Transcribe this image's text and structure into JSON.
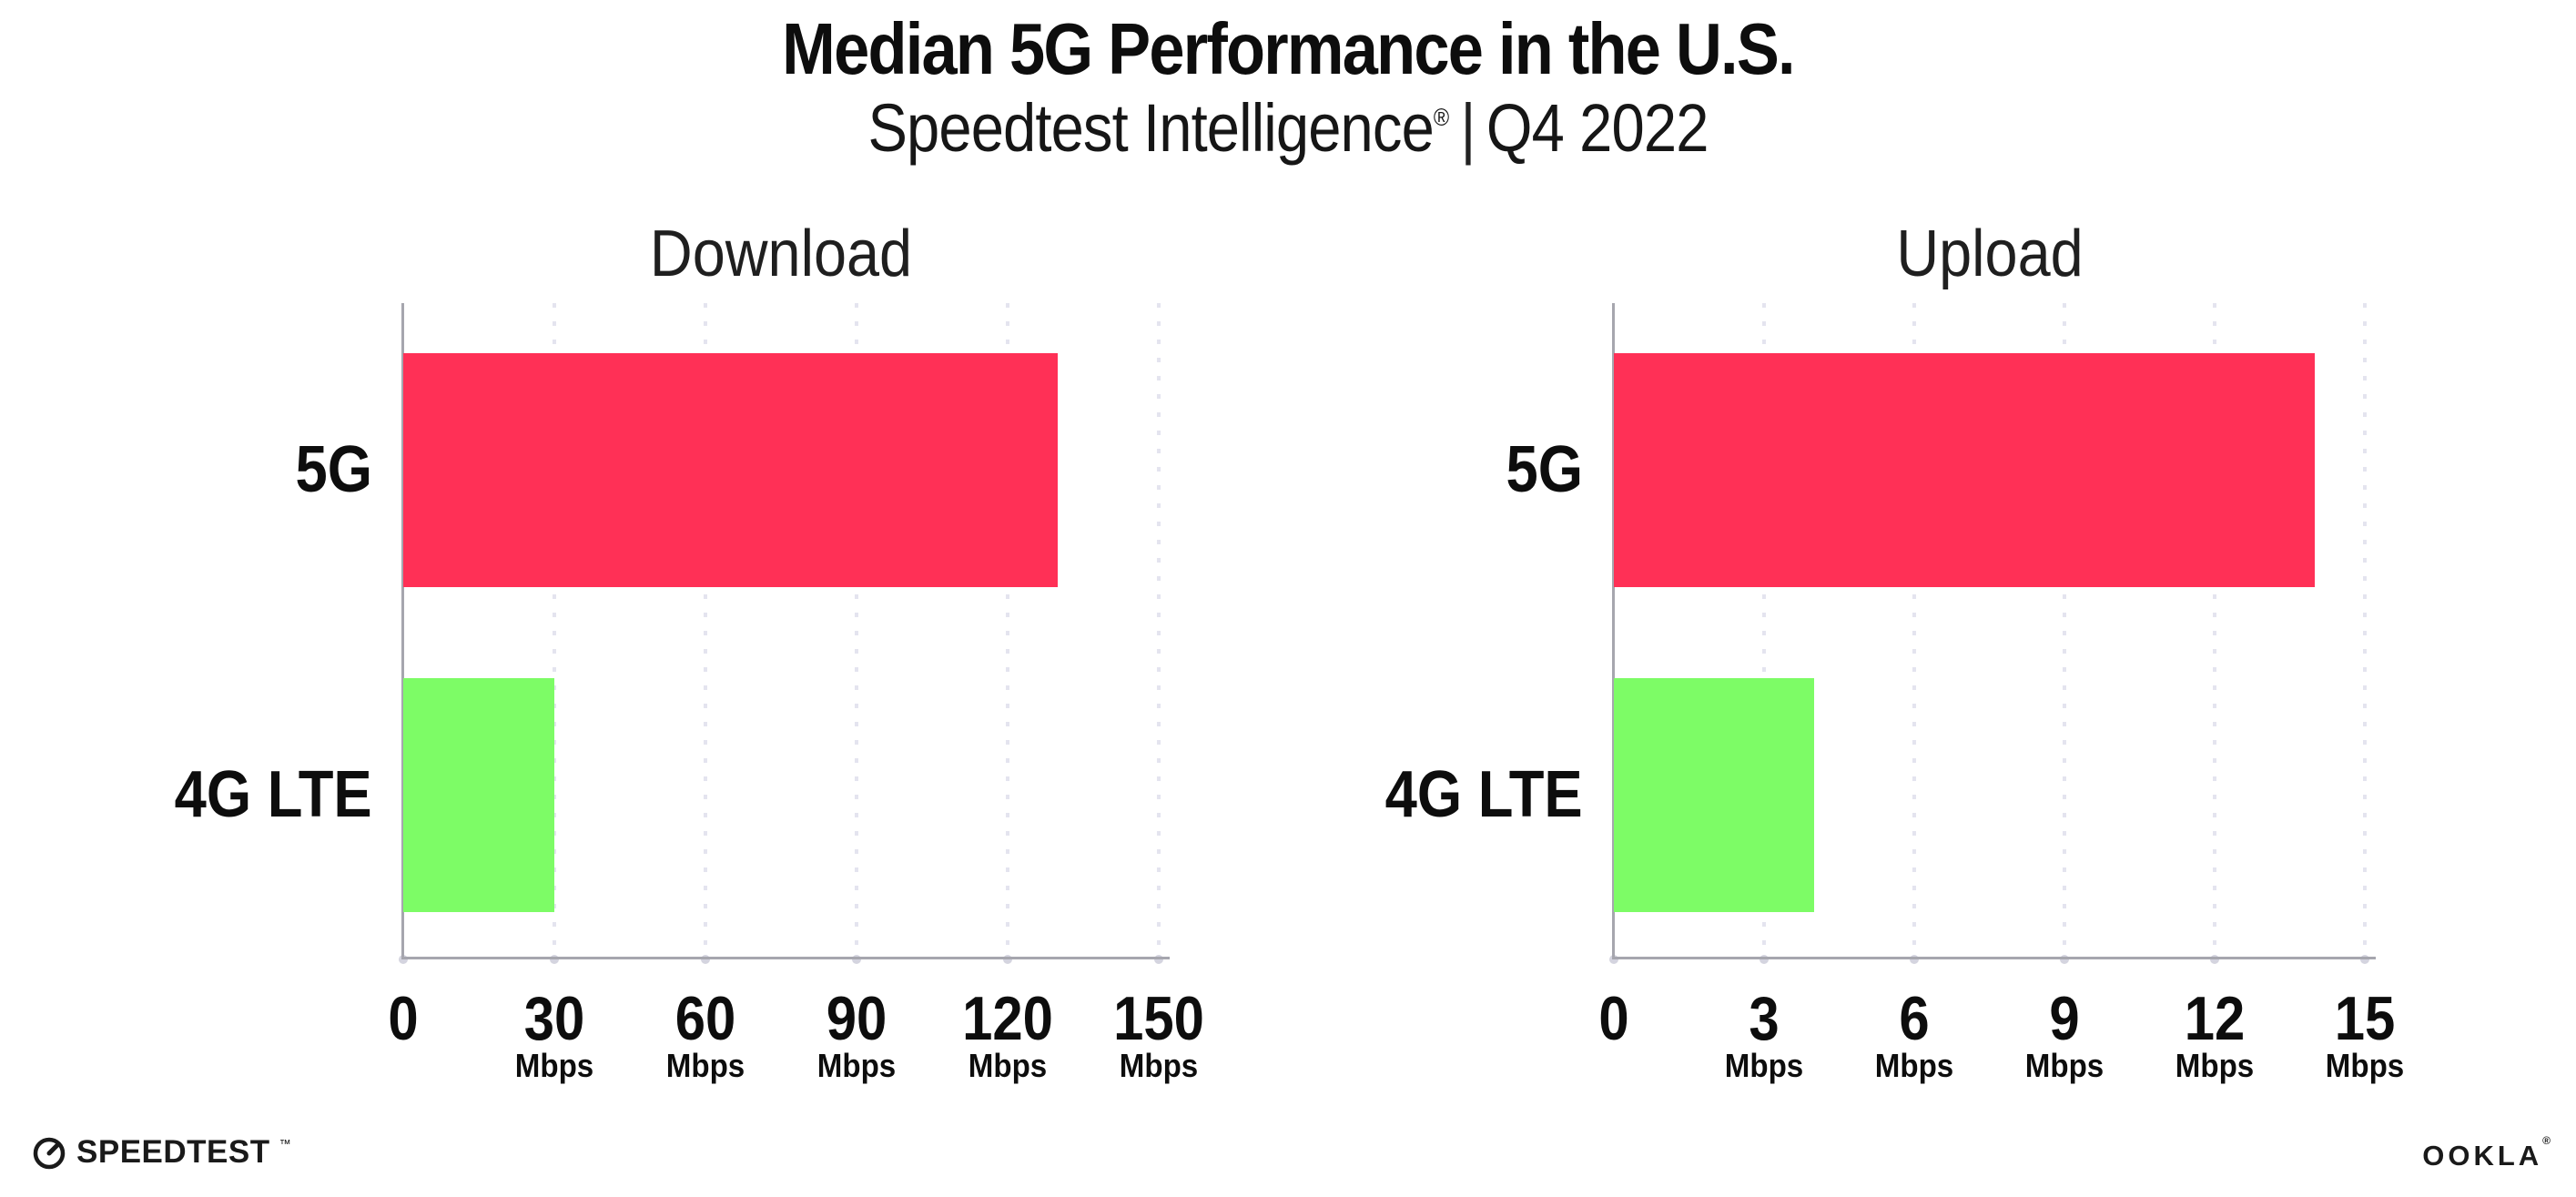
{
  "header": {
    "title": "Median 5G Performance in the U.S.",
    "subtitle_product": "Speedtest Intelligence",
    "subtitle_registered": "®",
    "subtitle_divider": "|",
    "subtitle_quarter": "Q4 2022"
  },
  "colors": {
    "bar_5g": "#FF3056",
    "bar_4g_lte": "#7DFC66",
    "axis": "#A6A6AE",
    "gridline": "#E4E4EF",
    "text": "#121212"
  },
  "chart_data": [
    {
      "type": "bar",
      "orientation": "horizontal",
      "title": "Download",
      "categories": [
        "5G",
        "4G LTE"
      ],
      "values": [
        130,
        30
      ],
      "unit": "Mbps",
      "xlim": [
        0,
        150
      ],
      "xticks": [
        0,
        30,
        60,
        90,
        120,
        150
      ],
      "grid": "vertical-dotted",
      "legend": "none",
      "bar_colors": [
        "#FF3056",
        "#7DFC66"
      ]
    },
    {
      "type": "bar",
      "orientation": "horizontal",
      "title": "Upload",
      "categories": [
        "5G",
        "4G LTE"
      ],
      "values": [
        14,
        4
      ],
      "unit": "Mbps",
      "xlim": [
        0,
        15
      ],
      "xticks": [
        0,
        3,
        6,
        9,
        12,
        15
      ],
      "grid": "vertical-dotted",
      "legend": "none",
      "bar_colors": [
        "#FF3056",
        "#7DFC66"
      ]
    }
  ],
  "footer": {
    "speedtest": "SPEEDTEST",
    "speedtest_mark": "™",
    "ookla": "OOKLA",
    "ookla_mark": "®"
  }
}
